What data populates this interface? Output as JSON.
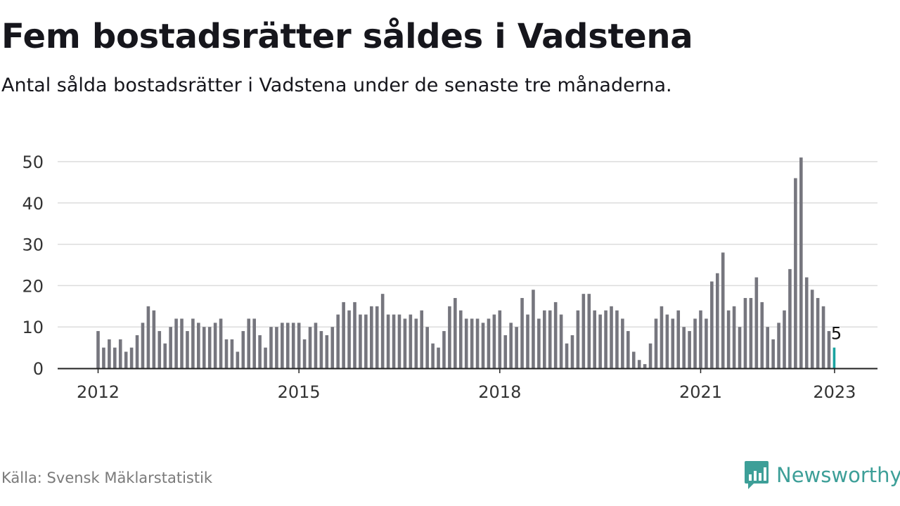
{
  "header": {
    "title": "Fem bostadsrätter såldes i Vadstena",
    "subtitle": "Antal sålda bostadsrätter i Vadstena under de senaste tre månaderna."
  },
  "footer": {
    "source": "Källa: Svensk Mäklarstatistik",
    "brand_name": "Newsworthy",
    "brand_icon": "bar-chart-speech-bubble-icon",
    "brand_color": "#3d9f98"
  },
  "colors": {
    "bar": "#76767e",
    "highlight": "#1aa3a0",
    "grid": "#dcdcdc",
    "axis": "#222222"
  },
  "chart_data": {
    "type": "bar",
    "x_start": "2012-01",
    "x_end": "2023-01",
    "values": [
      9,
      5,
      7,
      5,
      7,
      4,
      5,
      8,
      11,
      15,
      14,
      9,
      6,
      10,
      12,
      12,
      9,
      12,
      11,
      10,
      10,
      11,
      12,
      7,
      7,
      4,
      9,
      12,
      12,
      8,
      5,
      10,
      10,
      11,
      11,
      11,
      11,
      7,
      10,
      11,
      9,
      8,
      10,
      13,
      16,
      14,
      16,
      13,
      13,
      15,
      15,
      18,
      13,
      13,
      13,
      12,
      13,
      12,
      14,
      10,
      6,
      5,
      9,
      15,
      17,
      14,
      12,
      12,
      12,
      11,
      12,
      13,
      14,
      8,
      11,
      10,
      17,
      13,
      19,
      12,
      14,
      14,
      16,
      13,
      6,
      8,
      14,
      18,
      18,
      14,
      13,
      14,
      15,
      14,
      12,
      9,
      4,
      2,
      1,
      6,
      12,
      15,
      13,
      12,
      14,
      10,
      9,
      12,
      14,
      12,
      21,
      23,
      28,
      14,
      15,
      10,
      17,
      17,
      22,
      16,
      10,
      7,
      11,
      14,
      24,
      46,
      51,
      22,
      19,
      17,
      15,
      9,
      5
    ],
    "highlight_last": true,
    "data_label": "5",
    "y_ticks": [
      0,
      10,
      20,
      30,
      40,
      50
    ],
    "x_tick_labels": [
      "2012",
      "2015",
      "2018",
      "2021",
      "2023"
    ],
    "ylim": [
      0,
      50
    ],
    "grid": true
  }
}
